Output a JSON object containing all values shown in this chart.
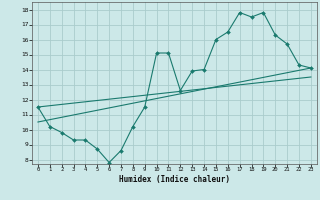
{
  "title": "",
  "xlabel": "Humidex (Indice chaleur)",
  "background_color": "#cce8e8",
  "grid_color": "#aacccc",
  "line_color": "#1a7a6e",
  "xlim": [
    -0.5,
    23.5
  ],
  "ylim": [
    7.7,
    18.5
  ],
  "yticks": [
    8,
    9,
    10,
    11,
    12,
    13,
    14,
    15,
    16,
    17,
    18
  ],
  "xticks": [
    0,
    1,
    2,
    3,
    4,
    5,
    6,
    7,
    8,
    9,
    10,
    11,
    12,
    13,
    14,
    15,
    16,
    17,
    18,
    19,
    20,
    21,
    22,
    23
  ],
  "series1_x": [
    0,
    1,
    2,
    3,
    4,
    5,
    6,
    7,
    8,
    9,
    10,
    11,
    12,
    13,
    14,
    15,
    16,
    17,
    18,
    19,
    20,
    21,
    22,
    23
  ],
  "series1_y": [
    11.5,
    10.2,
    9.8,
    9.3,
    9.3,
    8.7,
    7.8,
    8.6,
    10.2,
    11.5,
    15.1,
    15.1,
    12.6,
    13.9,
    14.0,
    16.0,
    16.5,
    17.8,
    17.5,
    17.8,
    16.3,
    15.7,
    14.3,
    14.1
  ],
  "series2_x": [
    0,
    23
  ],
  "series2_y": [
    10.5,
    14.1
  ],
  "series3_x": [
    0,
    23
  ],
  "series3_y": [
    11.5,
    13.5
  ]
}
